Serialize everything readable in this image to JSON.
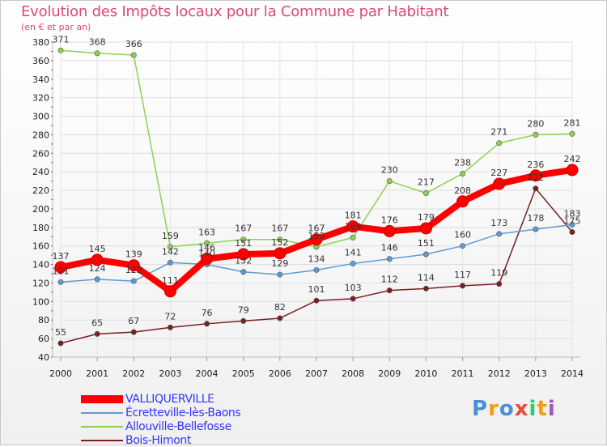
{
  "chart_data": {
    "type": "line",
    "title": "Evolution des Impôts locaux pour la Commune par Habitant",
    "subtitle": "(en € et par an)",
    "x": [
      "2000",
      "2001",
      "2002",
      "2003",
      "2004",
      "2005",
      "2006",
      "2007",
      "2008",
      "2009",
      "2010",
      "2011",
      "2012",
      "2013",
      "2014"
    ],
    "ylim": [
      40,
      380
    ],
    "yticks": [
      40,
      60,
      80,
      100,
      120,
      140,
      160,
      180,
      200,
      220,
      240,
      260,
      280,
      300,
      320,
      340,
      360,
      380
    ],
    "grid": true,
    "legend_position": "bottom-left",
    "series": [
      {
        "name": "VALLIQUERVILLE",
        "color": "#ff0000",
        "values": [
          137,
          145,
          139,
          111,
          146,
          151,
          152,
          167,
          181,
          176,
          179,
          208,
          227,
          236,
          242
        ]
      },
      {
        "name": "Écretteville-lès-Baons",
        "color": "#5b9bd5",
        "values": [
          121,
          124,
          122,
          142,
          140,
          132,
          129,
          134,
          141,
          146,
          151,
          160,
          173,
          178,
          183
        ]
      },
      {
        "name": "Allouville-Bellefosse",
        "color": "#8fd14f",
        "values": [
          371,
          368,
          366,
          159,
          163,
          167,
          167,
          159,
          169,
          230,
          217,
          238,
          271,
          280,
          281
        ]
      },
      {
        "name": "Bois-Himont",
        "color": "#7a1f24",
        "values": [
          55,
          65,
          67,
          72,
          76,
          79,
          82,
          101,
          103,
          112,
          114,
          117,
          119,
          222,
          175
        ]
      }
    ]
  },
  "legend": [
    {
      "label": "VALLIQUERVILLE",
      "color": "#ff0000",
      "text_color": "#3333ff"
    },
    {
      "label": "Écretteville-lès-Baons",
      "color": "#5b9bd5",
      "text_color": "#3333ff"
    },
    {
      "label": "Allouville-Bellefosse",
      "color": "#8fd14f",
      "text_color": "#3333ff"
    },
    {
      "label": "Bois-Himont",
      "color": "#7a1f24",
      "text_color": "#3333ff"
    }
  ],
  "logo": {
    "letters": [
      "P",
      "r",
      "o",
      "x",
      "i",
      "t",
      "i"
    ],
    "colors": [
      "#4a90d9",
      "#f39c12",
      "#4a90d9",
      "#e74c3c",
      "#2ecc71",
      "#f39c12",
      "#9b59b6"
    ]
  }
}
